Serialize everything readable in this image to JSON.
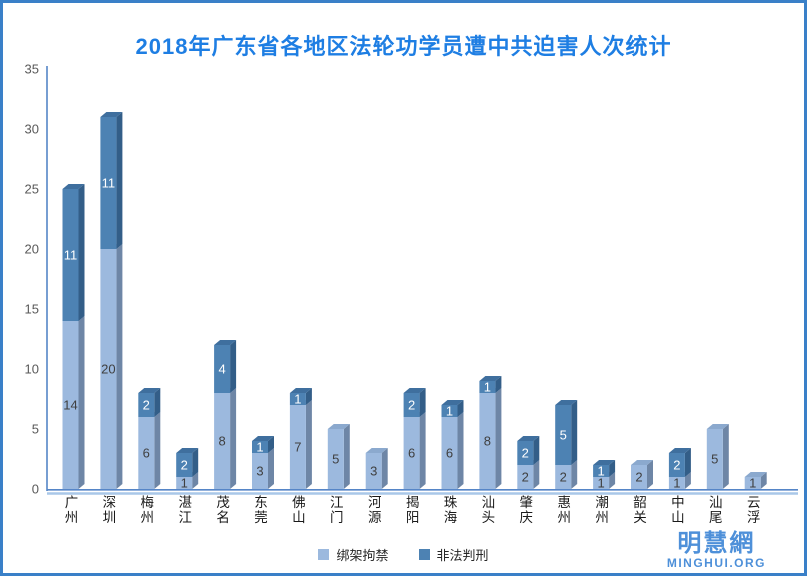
{
  "title": "2018年广东省各地区法轮功学员遭中共迫害人次统计",
  "watermark": {
    "name": "明慧網",
    "site": "MINGHUI.ORG"
  },
  "chart_data": {
    "type": "bar",
    "stacked": true,
    "style": "3d-box",
    "title": "2018年广东省各地区法轮功学员遭中共迫害人次统计",
    "categories": [
      "广州",
      "深圳",
      "梅州",
      "湛江",
      "茂名",
      "东莞",
      "佛山",
      "江门",
      "河源",
      "揭阳",
      "珠海",
      "汕头",
      "肇庆",
      "惠州",
      "潮州",
      "韶关",
      "中山",
      "汕尾",
      "云浮"
    ],
    "series": [
      {
        "name": "绑架拘禁",
        "color": "#9CB9DE",
        "values": [
          14,
          20,
          6,
          1,
          8,
          3,
          7,
          5,
          3,
          6,
          6,
          8,
          2,
          2,
          1,
          2,
          1,
          5,
          1
        ]
      },
      {
        "name": "非法判刑",
        "color": "#4D82B3",
        "values": [
          11,
          11,
          2,
          2,
          4,
          1,
          1,
          0,
          0,
          2,
          1,
          1,
          2,
          5,
          1,
          0,
          2,
          0,
          0
        ]
      }
    ],
    "yticks": [
      0,
      5,
      10,
      15,
      20,
      25,
      30,
      35
    ],
    "ylim": [
      0,
      35
    ],
    "xlabel": "",
    "ylabel": "",
    "grid": false,
    "legend_position": "bottom",
    "value_labels": true
  },
  "colors": {
    "light_front": "#9CB9DE",
    "light_side": "#6E86A6",
    "light_top": "#8BA9CE",
    "dark_front": "#4D82B3",
    "dark_side": "#335E88",
    "dark_top": "#3F6F9E",
    "axis": "#5585C7",
    "axis_shadow": "#A9C7E8",
    "tick_text": "#595959",
    "category_text": "#1A1A1A",
    "label_on_light": "#3F3F3F",
    "label_on_dark": "#FFFFFF",
    "title": "#1E7EE3",
    "watermark": "#4E90D9",
    "border": "#3A80C8"
  }
}
